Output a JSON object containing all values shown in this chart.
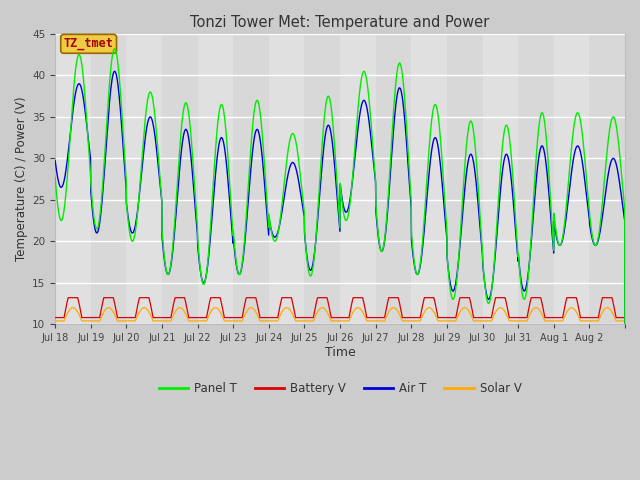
{
  "title": "Tonzi Tower Met: Temperature and Power",
  "xlabel": "Time",
  "ylabel": "Temperature (C) / Power (V)",
  "ylim": [
    10,
    45
  ],
  "background_color": "#e0e0e0",
  "plot_bg_color": "#e8e8e8",
  "tick_labels": [
    "Jul 18",
    "Jul 19",
    "Jul 20",
    "Jul 21",
    "Jul 22",
    "Jul 23",
    "Jul 24",
    "Jul 25",
    "Jul 26",
    "Jul 27",
    "Jul 28",
    "Jul 29",
    "Jul 30",
    "Jul 31",
    "Aug 1",
    "Aug 2"
  ],
  "legend_labels": [
    "Panel T",
    "Battery V",
    "Air T",
    "Solar V"
  ],
  "legend_colors": [
    "#00ee00",
    "#dd0000",
    "#0000dd",
    "#ffaa00"
  ],
  "annotation_text": "TZ_tmet",
  "annotation_bg": "#eecc44",
  "annotation_fg": "#aa0000",
  "panel_t_color": "#00ee00",
  "battery_v_color": "#dd0000",
  "air_t_color": "#0000dd",
  "solar_v_color": "#ffaa00",
  "n_days": 16,
  "points_per_day": 144,
  "panel_t_peaks": [
    42.5,
    43.2,
    38.0,
    36.7,
    36.5,
    37.0,
    33.0,
    37.5,
    40.5,
    41.5,
    36.5,
    34.5,
    34.0,
    35.5,
    35.5,
    35.0
  ],
  "panel_t_troughs": [
    22.5,
    21.5,
    20.0,
    16.0,
    14.8,
    16.0,
    20.0,
    15.8,
    22.5,
    18.8,
    16.0,
    13.0,
    12.5,
    13.0,
    19.5,
    19.5
  ],
  "air_t_peaks": [
    39.0,
    40.5,
    35.0,
    33.5,
    32.5,
    33.5,
    29.5,
    34.0,
    37.0,
    38.5,
    32.5,
    30.5,
    30.5,
    31.5,
    31.5,
    30.0
  ],
  "air_t_troughs": [
    26.5,
    21.0,
    21.0,
    16.0,
    15.0,
    16.0,
    20.5,
    16.5,
    23.5,
    18.8,
    16.0,
    14.0,
    13.0,
    14.0,
    19.5,
    19.5
  ],
  "battery_v_base": 10.8,
  "battery_v_peak": 13.2,
  "solar_v_base": 10.4,
  "solar_v_peak": 12.0
}
